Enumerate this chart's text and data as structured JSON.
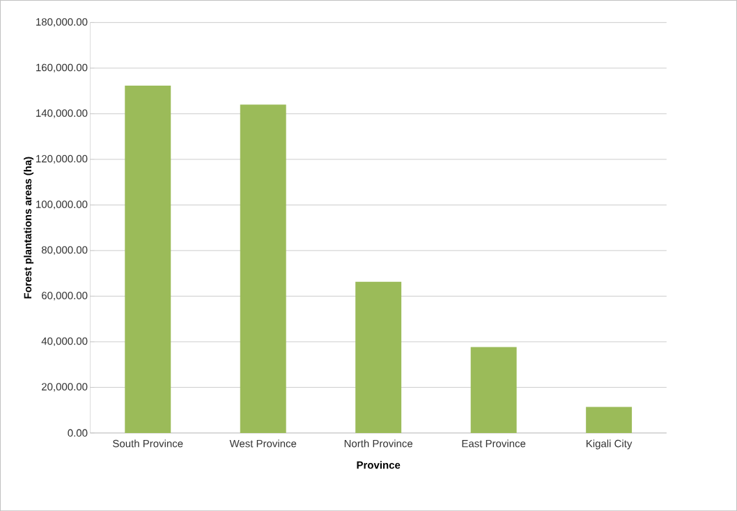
{
  "chart_data": {
    "type": "bar",
    "xlabel": "Province",
    "ylabel": "Forest plantations areas (ha)",
    "categories": [
      "South Province",
      "West Province",
      "North Province",
      "East Province",
      "Kigali City"
    ],
    "values": [
      152300,
      144000,
      66300,
      37700,
      11400
    ],
    "color": "#9bbb59",
    "ylim": [
      0,
      180000
    ],
    "yticks": [
      {
        "value": 0,
        "label": "0.00"
      },
      {
        "value": 20000,
        "label": "20,000.00"
      },
      {
        "value": 40000,
        "label": "40,000.00"
      },
      {
        "value": 60000,
        "label": "60,000.00"
      },
      {
        "value": 80000,
        "label": "80,000.00"
      },
      {
        "value": 100000,
        "label": "100,000.00"
      },
      {
        "value": 120000,
        "label": "120,000.00"
      },
      {
        "value": 140000,
        "label": "140,000.00"
      },
      {
        "value": 160000,
        "label": "160,000.00"
      },
      {
        "value": 180000,
        "label": "180,000.00"
      }
    ],
    "grid": "y"
  }
}
